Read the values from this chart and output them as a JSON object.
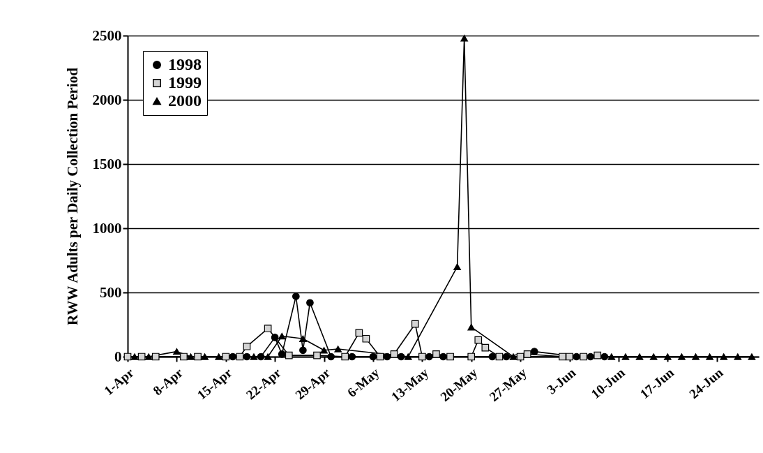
{
  "chart_data": {
    "type": "line",
    "ylabel": "RWW Adults per Daily Collection Period",
    "xlim": [
      "--04-01",
      "--06-30"
    ],
    "ylim": [
      0,
      2500
    ],
    "yticks": [
      0,
      500,
      1000,
      1500,
      2000,
      2500
    ],
    "xticks": [
      {
        "value": "--04-01",
        "label": "1-Apr"
      },
      {
        "value": "--04-08",
        "label": "8-Apr"
      },
      {
        "value": "--04-15",
        "label": "15-Apr"
      },
      {
        "value": "--04-22",
        "label": "22-Apr"
      },
      {
        "value": "--04-29",
        "label": "29-Apr"
      },
      {
        "value": "--05-06",
        "label": "6-May"
      },
      {
        "value": "--05-13",
        "label": "13-May"
      },
      {
        "value": "--05-20",
        "label": "20-May"
      },
      {
        "value": "--05-27",
        "label": "27-May"
      },
      {
        "value": "--06-03",
        "label": "3-Jun"
      },
      {
        "value": "--06-10",
        "label": "10-Jun"
      },
      {
        "value": "--06-17",
        "label": "17-Jun"
      },
      {
        "value": "--06-24",
        "label": "24-Jun"
      }
    ],
    "grid": "y",
    "legend": "top left",
    "series": [
      {
        "name": "1998",
        "color": "#000000",
        "marker": "circle",
        "x": [
          "--04-16",
          "--04-18",
          "--04-20",
          "--04-22",
          "--04-23",
          "--04-25",
          "--04-26",
          "--04-27",
          "--04-30",
          "--05-03",
          "--05-06",
          "--05-08",
          "--05-10",
          "--05-14",
          "--05-16",
          "--05-23",
          "--05-25",
          "--05-29",
          "--06-04",
          "--06-06",
          "--06-08"
        ],
        "values": [
          0,
          0,
          0,
          150,
          20,
          470,
          50,
          420,
          0,
          0,
          0,
          0,
          0,
          0,
          0,
          0,
          0,
          40,
          0,
          0,
          0
        ]
      },
      {
        "name": "1999",
        "color": "#000000",
        "marker": "square",
        "x": [
          "--04-01",
          "--04-03",
          "--04-05",
          "--04-09",
          "--04-11",
          "--04-15",
          "--04-17",
          "--04-18",
          "--04-21",
          "--04-24",
          "--04-28",
          "--05-02",
          "--05-04",
          "--05-05",
          "--05-07",
          "--05-09",
          "--05-12",
          "--05-13",
          "--05-15",
          "--05-17",
          "--05-20",
          "--05-21",
          "--05-22",
          "--05-24",
          "--05-27",
          "--05-28",
          "--06-02",
          "--06-03",
          "--06-05",
          "--06-07"
        ],
        "values": [
          0,
          0,
          0,
          0,
          0,
          0,
          0,
          80,
          220,
          10,
          10,
          0,
          185,
          140,
          0,
          20,
          255,
          0,
          20,
          0,
          0,
          130,
          70,
          0,
          0,
          20,
          0,
          0,
          0,
          10
        ]
      },
      {
        "name": "2000",
        "color": "#000000",
        "marker": "triangle",
        "x": [
          "--04-02",
          "--04-04",
          "--04-08",
          "--04-10",
          "--04-12",
          "--04-14",
          "--04-19",
          "--04-21",
          "--04-23",
          "--04-26",
          "--04-29",
          "--05-01",
          "--05-11",
          "--05-18",
          "--05-19",
          "--05-20",
          "--05-26",
          "--06-09",
          "--06-11",
          "--06-13",
          "--06-15",
          "--06-17",
          "--06-19",
          "--06-21",
          "--06-23",
          "--06-25",
          "--06-27",
          "--06-29"
        ],
        "values": [
          0,
          0,
          40,
          0,
          0,
          0,
          0,
          0,
          160,
          140,
          50,
          60,
          0,
          700,
          2480,
          230,
          0,
          0,
          0,
          0,
          0,
          0,
          0,
          0,
          0,
          0,
          0,
          0
        ]
      }
    ]
  }
}
